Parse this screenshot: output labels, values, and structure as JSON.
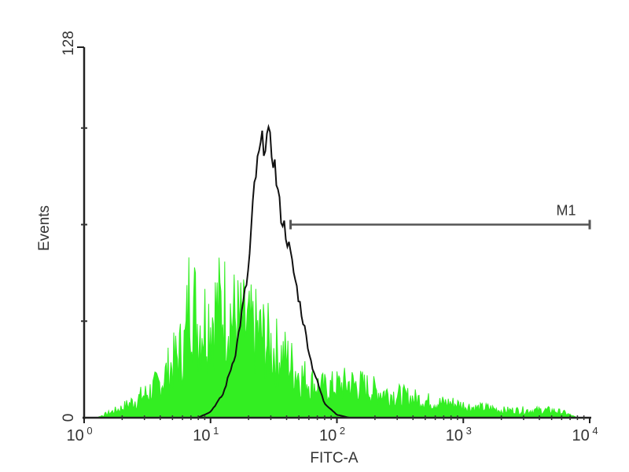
{
  "chart_data": {
    "type": "area",
    "xlabel": "FITC-A",
    "ylabel": "Events",
    "x_scale": "log",
    "xlim": [
      1,
      10000
    ],
    "ylim": [
      0,
      128
    ],
    "x_tick_labels": [
      {
        "base": "10",
        "exp": "0"
      },
      {
        "base": "10",
        "exp": "1"
      },
      {
        "base": "10",
        "exp": "2"
      },
      {
        "base": "10",
        "exp": "3"
      },
      {
        "base": "10",
        "exp": "4"
      }
    ],
    "y_tick_labels": [
      "0",
      "128"
    ],
    "grid": false,
    "series": [
      {
        "color": "#33ee22",
        "style": "filled",
        "points": [
          [
            1,
            0
          ],
          [
            1.26,
            0
          ],
          [
            1.58,
            2
          ],
          [
            2.0,
            4
          ],
          [
            2.51,
            7
          ],
          [
            3.16,
            10
          ],
          [
            3.98,
            14
          ],
          [
            5.01,
            22
          ],
          [
            6.31,
            30
          ],
          [
            6.9,
            55
          ],
          [
            7.94,
            38
          ],
          [
            10,
            42
          ],
          [
            12.6,
            46
          ],
          [
            15.8,
            40
          ],
          [
            20,
            36
          ],
          [
            25.1,
            34
          ],
          [
            31.6,
            28
          ],
          [
            39.8,
            24
          ],
          [
            50.1,
            18
          ],
          [
            63.1,
            14
          ],
          [
            79.4,
            12
          ],
          [
            100,
            13
          ],
          [
            126,
            14
          ],
          [
            158,
            13
          ],
          [
            200,
            11
          ],
          [
            251,
            10
          ],
          [
            316,
            9
          ],
          [
            398,
            8
          ],
          [
            501,
            7
          ],
          [
            631,
            6
          ],
          [
            794,
            6
          ],
          [
            1000,
            5
          ],
          [
            1259,
            4
          ],
          [
            1585,
            4
          ],
          [
            1995,
            3
          ],
          [
            2512,
            3
          ],
          [
            3162,
            3
          ],
          [
            3981,
            3
          ],
          [
            5012,
            3
          ],
          [
            6310,
            2
          ],
          [
            7943,
            0
          ]
        ]
      },
      {
        "color": "#111111",
        "style": "line",
        "points": [
          [
            5.01,
            0
          ],
          [
            6.31,
            0
          ],
          [
            7.94,
            0
          ],
          [
            10,
            2
          ],
          [
            12.6,
            8
          ],
          [
            15.8,
            22
          ],
          [
            20,
            50
          ],
          [
            22.4,
            80
          ],
          [
            25.1,
            92
          ],
          [
            28.2,
            95
          ],
          [
            31.6,
            88
          ],
          [
            35.5,
            70
          ],
          [
            39.8,
            62
          ],
          [
            50.1,
            40
          ],
          [
            63.1,
            18
          ],
          [
            79.4,
            5
          ],
          [
            100,
            1
          ],
          [
            126,
            0
          ]
        ]
      }
    ],
    "marker": {
      "label": "M1",
      "range": [
        43,
        10000
      ],
      "level": 64,
      "color": "#555555"
    }
  }
}
